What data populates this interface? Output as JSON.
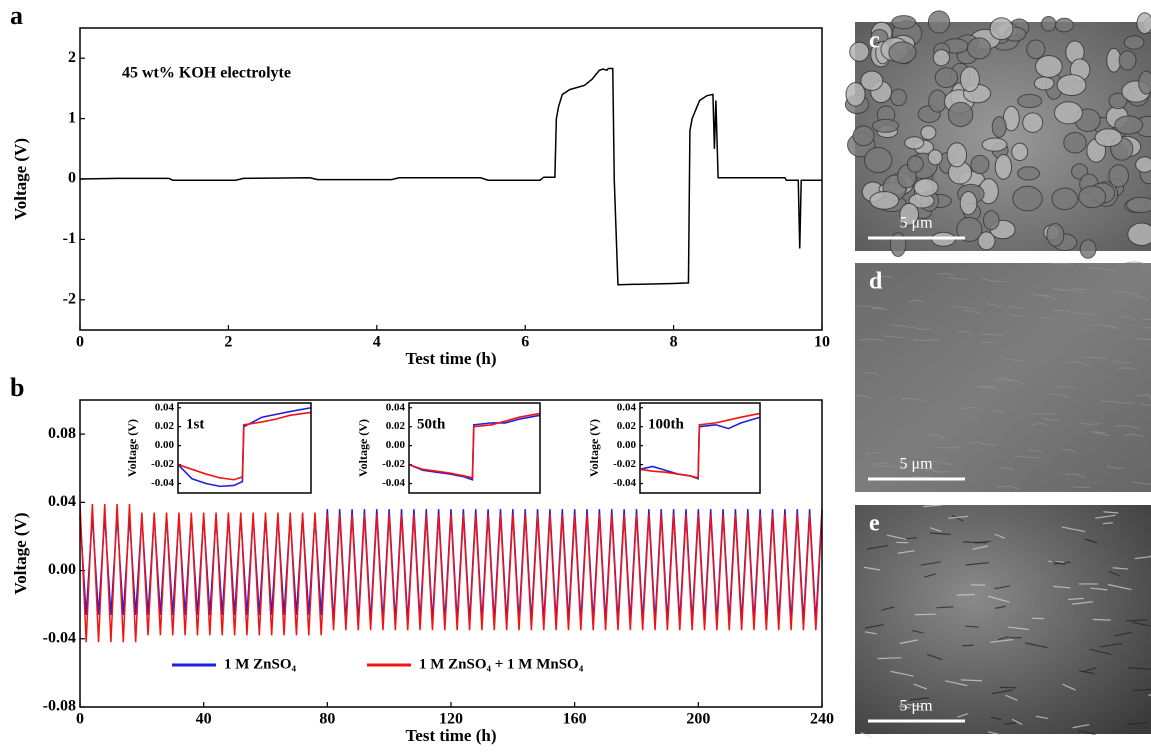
{
  "chart_data": [
    {
      "type": "line",
      "panel": "a",
      "annotation": "45 wt% KOH electrolyte",
      "x_label": "Test time (h)",
      "y_label": "Voltage (V)",
      "color": "#000000",
      "x": [
        0,
        0.5,
        1.2,
        1.25,
        2.1,
        2.2,
        3.1,
        3.2,
        4.2,
        4.3,
        5.4,
        5.5,
        6.2,
        6.25,
        6.4,
        6.42,
        6.45,
        6.5,
        6.6,
        6.8,
        6.9,
        7.0,
        7.05,
        7.1,
        7.12,
        7.18,
        7.2,
        7.25,
        8.0,
        8.2,
        8.22,
        8.25,
        8.3,
        8.35,
        8.45,
        8.53,
        8.55,
        8.57,
        8.6,
        9.5,
        9.52,
        9.68,
        9.7,
        9.72,
        10
      ],
      "values": [
        0,
        0.01,
        0.01,
        -0.02,
        -0.02,
        0.01,
        0.02,
        -0.01,
        -0.01,
        0.02,
        0.02,
        -0.02,
        -0.02,
        0.03,
        0.03,
        1.0,
        1.2,
        1.4,
        1.48,
        1.55,
        1.65,
        1.8,
        1.82,
        1.8,
        1.83,
        1.83,
        0,
        -1.75,
        -1.73,
        -1.72,
        0.8,
        1.0,
        1.15,
        1.3,
        1.38,
        1.4,
        0.5,
        1.3,
        0.02,
        0.02,
        -0.02,
        -0.02,
        -1.15,
        -0.02,
        -0.02
      ],
      "xlim": [
        0,
        10
      ],
      "xticks": [
        0,
        2,
        4,
        6,
        8,
        10
      ],
      "ylim": [
        -2.5,
        2.5
      ],
      "yticks": [
        -2,
        -1,
        0,
        1,
        2
      ]
    },
    {
      "type": "line",
      "panel": "b",
      "x_label": "Test time (h)",
      "y_label": "Voltage (V)",
      "x": [
        0,
        2,
        4,
        6,
        8,
        10,
        12,
        14,
        16,
        18,
        20,
        22,
        24,
        26,
        28,
        30,
        32,
        34,
        36,
        38,
        40,
        42,
        44,
        46,
        48,
        50,
        52,
        54,
        56,
        58,
        60,
        62,
        64,
        66,
        68,
        70,
        72,
        74,
        76,
        78,
        80,
        82,
        84,
        86,
        88,
        90,
        92,
        94,
        96,
        98,
        100,
        102,
        104,
        106,
        108,
        110,
        112,
        114,
        116,
        118,
        120,
        122,
        124,
        126,
        128,
        130,
        132,
        134,
        136,
        138,
        140,
        142,
        144,
        146,
        148,
        150,
        152,
        154,
        156,
        158,
        160,
        162,
        164,
        166,
        168,
        170,
        172,
        174,
        176,
        178,
        180,
        182,
        184,
        186,
        188,
        190,
        192,
        194,
        196,
        198,
        200,
        202,
        204,
        206,
        208,
        210,
        212,
        214,
        216,
        218,
        220,
        222,
        224,
        226,
        228,
        230,
        232,
        234,
        236,
        238,
        240
      ],
      "series": [
        {
          "name": "1 M ZnSO₄",
          "color": "#1f1fe0",
          "values": [
            0.032,
            -0.026,
            0.032,
            -0.026,
            0.032,
            -0.026,
            0.032,
            -0.026,
            0.032,
            -0.026,
            0.032,
            -0.026,
            0.032,
            -0.026,
            0.032,
            -0.026,
            0.032,
            -0.026,
            0.032,
            -0.026,
            0.032,
            -0.026,
            0.032,
            -0.026,
            0.032,
            -0.026,
            0.032,
            -0.026,
            0.032,
            -0.026,
            0.032,
            -0.026,
            0.032,
            -0.026,
            0.032,
            -0.026,
            0.032,
            -0.026,
            0.032,
            -0.026,
            0.036,
            -0.03,
            0.036,
            -0.03,
            0.036,
            -0.03,
            0.036,
            -0.03,
            0.036,
            -0.03,
            0.036,
            -0.03,
            0.036,
            -0.03,
            0.036,
            -0.03,
            0.036,
            -0.03,
            0.036,
            -0.03,
            0.036,
            -0.03,
            0.036,
            -0.03,
            0.036,
            -0.03,
            0.036,
            -0.03,
            0.036,
            -0.03,
            0.036,
            -0.03,
            0.036,
            -0.03,
            0.036,
            -0.03,
            0.036,
            -0.03,
            0.036,
            -0.03,
            0.036,
            -0.03,
            0.036,
            -0.03,
            0.036,
            -0.03,
            0.036,
            -0.03,
            0.036,
            -0.03,
            0.036,
            -0.03,
            0.036,
            -0.03,
            0.036,
            -0.03,
            0.036,
            -0.03,
            0.036,
            -0.03,
            0.036,
            -0.03,
            0.036,
            -0.03,
            0.036,
            -0.03,
            0.036,
            -0.03,
            0.036,
            -0.03,
            0.036,
            -0.03,
            0.036,
            -0.03,
            0.036,
            -0.03,
            0.036,
            -0.03,
            0.036,
            -0.03,
            0.036
          ]
        },
        {
          "name": "1 M ZnSO₄ + 1 M MnSO₄",
          "color": "#f01414",
          "values": [
            0.039,
            -0.042,
            0.039,
            -0.042,
            0.039,
            -0.042,
            0.039,
            -0.042,
            0.039,
            -0.042,
            0.034,
            -0.038,
            0.034,
            -0.038,
            0.034,
            -0.038,
            0.034,
            -0.038,
            0.034,
            -0.038,
            0.034,
            -0.038,
            0.034,
            -0.038,
            0.034,
            -0.038,
            0.034,
            -0.038,
            0.034,
            -0.038,
            0.034,
            -0.038,
            0.034,
            -0.038,
            0.034,
            -0.038,
            0.034,
            -0.038,
            0.034,
            -0.038,
            0.033,
            -0.035,
            0.033,
            -0.035,
            0.033,
            -0.035,
            0.033,
            -0.035,
            0.033,
            -0.035,
            0.033,
            -0.035,
            0.033,
            -0.035,
            0.033,
            -0.035,
            0.033,
            -0.035,
            0.033,
            -0.035,
            0.033,
            -0.035,
            0.033,
            -0.035,
            0.033,
            -0.035,
            0.033,
            -0.035,
            0.033,
            -0.035,
            0.033,
            -0.035,
            0.033,
            -0.035,
            0.033,
            -0.035,
            0.033,
            -0.035,
            0.033,
            -0.035,
            0.033,
            -0.035,
            0.033,
            -0.035,
            0.033,
            -0.035,
            0.033,
            -0.035,
            0.033,
            -0.035,
            0.033,
            -0.035,
            0.033,
            -0.035,
            0.033,
            -0.035,
            0.033,
            -0.035,
            0.033,
            -0.035,
            0.033,
            -0.035,
            0.033,
            -0.035,
            0.033,
            -0.035,
            0.033,
            -0.035,
            0.033,
            -0.035,
            0.033,
            -0.035,
            0.033,
            -0.035,
            0.033,
            -0.035,
            0.033,
            -0.035,
            0.033,
            -0.035,
            0.033
          ]
        }
      ],
      "xlim": [
        0,
        240
      ],
      "xticks": [
        0,
        40,
        80,
        120,
        160,
        200,
        240
      ],
      "ylim": [
        -0.08,
        0.1
      ],
      "yticks": [
        -0.08,
        -0.04,
        {
          "value": 0,
          "label": "0.00"
        },
        0.04,
        0.08
      ]
    },
    {
      "type": "line",
      "label": "1st",
      "y_label": "Voltage (V)",
      "x": [
        0,
        1,
        2,
        3,
        4,
        4.6,
        4.7,
        6,
        7,
        8,
        9.5
      ],
      "xlim": [
        0,
        9.5
      ],
      "series": [
        {
          "color": "#1f1fe0",
          "values": [
            -0.02,
            -0.035,
            -0.04,
            -0.043,
            -0.042,
            -0.038,
            0.02,
            0.03,
            0.033,
            0.036,
            0.04
          ]
        },
        {
          "color": "#f01414",
          "values": [
            -0.02,
            -0.025,
            -0.03,
            -0.034,
            -0.036,
            -0.033,
            0.022,
            0.025,
            0.028,
            0.032,
            0.035
          ]
        }
      ],
      "ylim": [
        -0.05,
        0.045
      ],
      "yticks": [
        -0.04,
        -0.02,
        {
          "value": 0,
          "label": "0.00"
        },
        0.02,
        0.04
      ]
    },
    {
      "type": "line",
      "label": "50th",
      "y_label": "Voltage (V)",
      "x": [
        0,
        1,
        2,
        3,
        4,
        4.6,
        4.7,
        6,
        7,
        8,
        9.5
      ],
      "xlim": [
        0,
        9.5
      ],
      "series": [
        {
          "color": "#1f1fe0",
          "values": [
            -0.02,
            -0.026,
            -0.028,
            -0.03,
            -0.033,
            -0.036,
            0.022,
            0.024,
            0.024,
            0.028,
            0.032
          ]
        },
        {
          "color": "#f01414",
          "values": [
            -0.02,
            -0.025,
            -0.027,
            -0.029,
            -0.032,
            -0.034,
            0.02,
            0.022,
            0.026,
            0.03,
            0.034
          ]
        }
      ],
      "ylim": [
        -0.05,
        0.045
      ],
      "yticks": [
        -0.04,
        -0.02,
        {
          "value": 0,
          "label": "0.00"
        },
        0.02,
        0.04
      ]
    },
    {
      "type": "line",
      "label": "100th",
      "y_label": "Voltage (V)",
      "x": [
        0,
        1,
        2,
        3,
        4,
        4.6,
        4.7,
        6,
        7,
        8,
        9.5
      ],
      "xlim": [
        0,
        9.5
      ],
      "series": [
        {
          "color": "#1f1fe0",
          "values": [
            -0.025,
            -0.022,
            -0.026,
            -0.03,
            -0.032,
            -0.035,
            0.02,
            0.022,
            0.018,
            0.024,
            0.03
          ]
        },
        {
          "color": "#f01414",
          "values": [
            -0.025,
            -0.027,
            -0.028,
            -0.03,
            -0.032,
            -0.034,
            0.022,
            0.024,
            0.027,
            0.03,
            0.034
          ]
        }
      ],
      "ylim": [
        -0.05,
        0.045
      ],
      "yticks": [
        -0.04,
        -0.02,
        {
          "value": 0,
          "label": "0.00"
        },
        0.02,
        0.04
      ]
    }
  ],
  "images": [
    {
      "label": "c",
      "scale": "5 μm"
    },
    {
      "label": "d",
      "scale": "5 μm"
    },
    {
      "label": "e",
      "scale": "5 μm"
    }
  ]
}
